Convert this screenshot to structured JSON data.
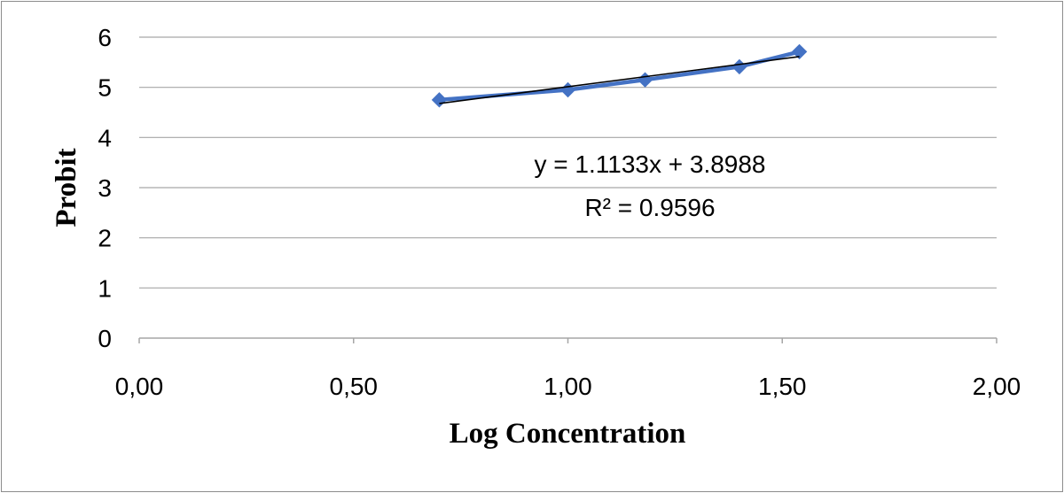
{
  "chart_data": {
    "type": "scatter",
    "title": "",
    "xlabel": "Log Concentration",
    "ylabel": "Probit",
    "xlim": [
      0,
      2
    ],
    "ylim": [
      0,
      6
    ],
    "x_ticks": [
      "0,00",
      "0,50",
      "1,00",
      "1,50",
      "2,00"
    ],
    "y_ticks": [
      "0",
      "1",
      "2",
      "3",
      "4",
      "5",
      "6"
    ],
    "grid": "horizontal",
    "legend": "none",
    "series": [
      {
        "x": [
          0.7,
          1.0,
          1.18,
          1.4,
          1.54
        ],
        "y": [
          4.75,
          4.95,
          5.15,
          5.41,
          5.71
        ],
        "color": "#4472c4",
        "marker": "diamond"
      }
    ],
    "trendline": {
      "type": "linear",
      "slope": 1.1133,
      "intercept": 3.8988,
      "x_range": [
        0.7,
        1.54
      ],
      "color": "#000000",
      "equation": "y = 1.1133x + 3.8988",
      "r_squared_label": "R² = 0.9596"
    }
  }
}
